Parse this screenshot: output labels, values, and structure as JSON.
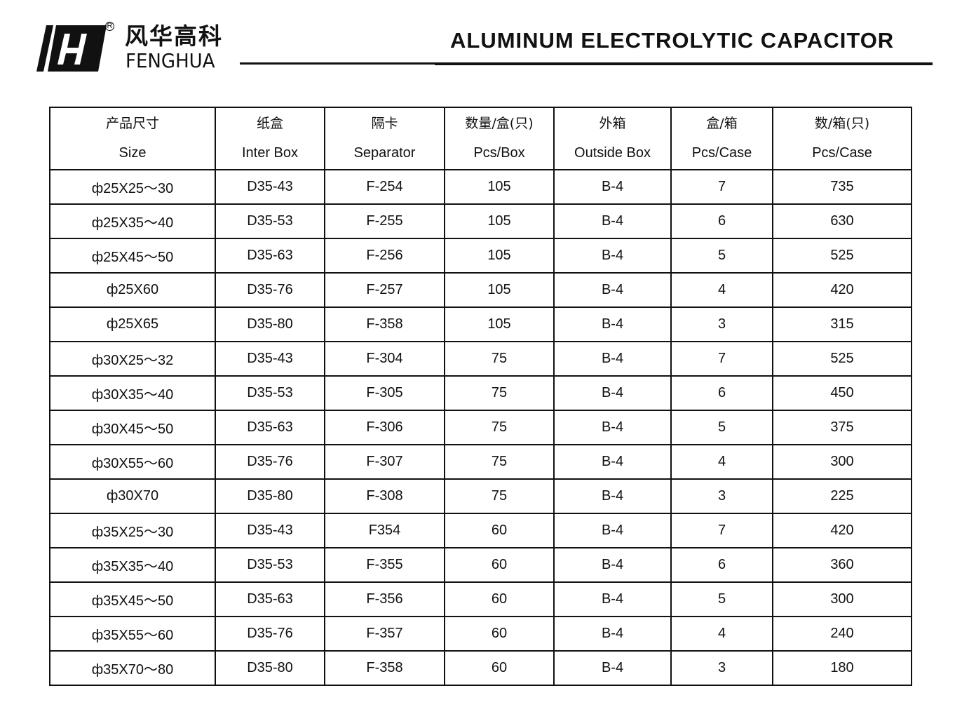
{
  "brand": {
    "name_cn": "风华高科",
    "name_en": "FENGHUA",
    "registered": "R"
  },
  "title": "ALUMINUM ELECTROLYTIC CAPACITOR",
  "table": {
    "headers": [
      {
        "cn": "产品尺寸",
        "en": "Size"
      },
      {
        "cn": "纸盒",
        "en": "Inter Box"
      },
      {
        "cn": "隔卡",
        "en": "Separator"
      },
      {
        "cn": "数量/盒(只)",
        "en": "Pcs/Box"
      },
      {
        "cn": "外箱",
        "en": "Outside Box"
      },
      {
        "cn": "盒/箱",
        "en": "Pcs/Case"
      },
      {
        "cn": "数/箱(只)",
        "en": "Pcs/Case"
      }
    ],
    "rows": [
      [
        "ф25X25～30",
        "D35-43",
        "F-254",
        "105",
        "B-4",
        "7",
        "735"
      ],
      [
        "ф25X35～40",
        "D35-53",
        "F-255",
        "105",
        "B-4",
        "6",
        "630"
      ],
      [
        "ф25X45～50",
        "D35-63",
        "F-256",
        "105",
        "B-4",
        "5",
        "525"
      ],
      [
        "ф25X60",
        "D35-76",
        "F-257",
        "105",
        "B-4",
        "4",
        "420"
      ],
      [
        "ф25X65",
        "D35-80",
        "F-358",
        "105",
        "B-4",
        "3",
        "315"
      ],
      [
        "ф30X25～32",
        "D35-43",
        "F-304",
        "75",
        "B-4",
        "7",
        "525"
      ],
      [
        "ф30X35～40",
        "D35-53",
        "F-305",
        "75",
        "B-4",
        "6",
        "450"
      ],
      [
        "ф30X45～50",
        "D35-63",
        "F-306",
        "75",
        "B-4",
        "5",
        "375"
      ],
      [
        "ф30X55～60",
        "D35-76",
        "F-307",
        "75",
        "B-4",
        "4",
        "300"
      ],
      [
        "ф30X70",
        "D35-80",
        "F-308",
        "75",
        "B-4",
        "3",
        "225"
      ],
      [
        "ф35X25～30",
        "D35-43",
        "F354",
        "60",
        "B-4",
        "7",
        "420"
      ],
      [
        "ф35X35～40",
        "D35-53",
        "F-355",
        "60",
        "B-4",
        "6",
        "360"
      ],
      [
        "ф35X45～50",
        "D35-63",
        "F-356",
        "60",
        "B-4",
        "5",
        "300"
      ],
      [
        "ф35X55～60",
        "D35-76",
        "F-357",
        "60",
        "B-4",
        "4",
        "240"
      ],
      [
        "ф35X70～80",
        "D35-80",
        "F-358",
        "60",
        "B-4",
        "3",
        "180"
      ]
    ]
  }
}
